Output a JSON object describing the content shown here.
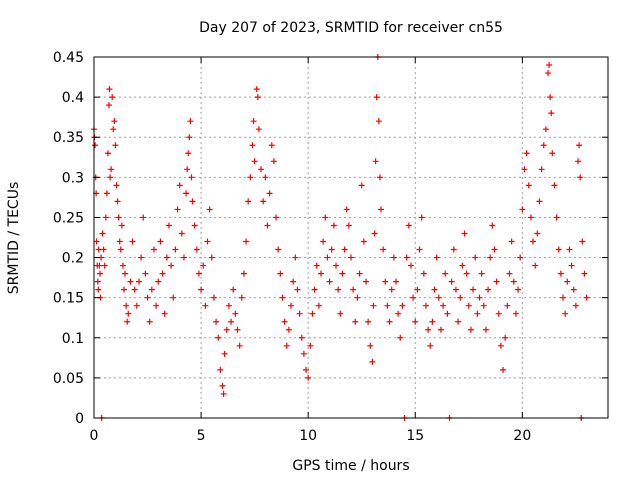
{
  "chart_data": {
    "type": "scatter",
    "title": "Day 207 of 2023, SRMTID for receiver cn55",
    "xlabel": "GPS time / hours",
    "ylabel": "SRMTID / TECUs",
    "xlim": [
      0,
      24
    ],
    "ylim": [
      0,
      0.45
    ],
    "grid": true,
    "marker": "+",
    "colors": {
      "series": "#ff0000",
      "grid": "#a0a0a0",
      "axis": "#000000"
    },
    "xticks": [
      {
        "value": 0,
        "label": "0"
      },
      {
        "value": 5,
        "label": "5"
      },
      {
        "value": 10,
        "label": "10"
      },
      {
        "value": 15,
        "label": "15"
      },
      {
        "value": 20,
        "label": "20"
      }
    ],
    "yticks": [
      {
        "value": 0,
        "label": "0"
      },
      {
        "value": 0.05,
        "label": "0.05"
      },
      {
        "value": 0.1,
        "label": "0.1"
      },
      {
        "value": 0.15,
        "label": "0.15"
      },
      {
        "value": 0.2,
        "label": "0.2"
      },
      {
        "value": 0.25,
        "label": "0.25"
      },
      {
        "value": 0.3,
        "label": "0.3"
      },
      {
        "value": 0.35,
        "label": "0.35"
      },
      {
        "value": 0.4,
        "label": "0.4"
      },
      {
        "value": 0.45,
        "label": "0.45"
      }
    ],
    "series": [
      {
        "name": "SRMTID",
        "points": [
          [
            0.0,
            0.36
          ],
          [
            0.02,
            0.35
          ],
          [
            0.05,
            0.34
          ],
          [
            0.08,
            0.3
          ],
          [
            0.1,
            0.28
          ],
          [
            0.12,
            0.22
          ],
          [
            0.15,
            0.19
          ],
          [
            0.18,
            0.17
          ],
          [
            0.2,
            0.16
          ],
          [
            0.22,
            0.21
          ],
          [
            0.25,
            0.19
          ],
          [
            0.28,
            0.18
          ],
          [
            0.3,
            0.15
          ],
          [
            0.33,
            0.2
          ],
          [
            0.36,
            0.0
          ],
          [
            0.4,
            0.23
          ],
          [
            0.45,
            0.21
          ],
          [
            0.5,
            0.19
          ],
          [
            0.55,
            0.25
          ],
          [
            0.6,
            0.28
          ],
          [
            0.65,
            0.33
          ],
          [
            0.7,
            0.39
          ],
          [
            0.72,
            0.41
          ],
          [
            0.75,
            0.3
          ],
          [
            0.8,
            0.31
          ],
          [
            0.85,
            0.4
          ],
          [
            0.9,
            0.36
          ],
          [
            0.95,
            0.37
          ],
          [
            1.0,
            0.34
          ],
          [
            1.05,
            0.29
          ],
          [
            1.1,
            0.27
          ],
          [
            1.15,
            0.25
          ],
          [
            1.2,
            0.22
          ],
          [
            1.25,
            0.21
          ],
          [
            1.3,
            0.24
          ],
          [
            1.35,
            0.19
          ],
          [
            1.4,
            0.16
          ],
          [
            1.45,
            0.18
          ],
          [
            1.5,
            0.14
          ],
          [
            1.55,
            0.12
          ],
          [
            1.6,
            0.13
          ],
          [
            1.7,
            0.17
          ],
          [
            1.8,
            0.22
          ],
          [
            1.9,
            0.16
          ],
          [
            2.0,
            0.14
          ],
          [
            2.1,
            0.17
          ],
          [
            2.2,
            0.2
          ],
          [
            2.3,
            0.25
          ],
          [
            2.4,
            0.18
          ],
          [
            2.5,
            0.15
          ],
          [
            2.6,
            0.12
          ],
          [
            2.7,
            0.16
          ],
          [
            2.8,
            0.21
          ],
          [
            2.9,
            0.14
          ],
          [
            3.0,
            0.17
          ],
          [
            3.1,
            0.22
          ],
          [
            3.2,
            0.18
          ],
          [
            3.3,
            0.13
          ],
          [
            3.4,
            0.2
          ],
          [
            3.5,
            0.24
          ],
          [
            3.6,
            0.19
          ],
          [
            3.7,
            0.15
          ],
          [
            3.8,
            0.21
          ],
          [
            3.9,
            0.26
          ],
          [
            4.0,
            0.29
          ],
          [
            4.1,
            0.23
          ],
          [
            4.2,
            0.2
          ],
          [
            4.3,
            0.28
          ],
          [
            4.35,
            0.31
          ],
          [
            4.4,
            0.33
          ],
          [
            4.45,
            0.35
          ],
          [
            4.5,
            0.37
          ],
          [
            4.55,
            0.3
          ],
          [
            4.6,
            0.27
          ],
          [
            4.7,
            0.24
          ],
          [
            4.8,
            0.21
          ],
          [
            4.9,
            0.18
          ],
          [
            5.0,
            0.16
          ],
          [
            5.1,
            0.19
          ],
          [
            5.2,
            0.14
          ],
          [
            5.3,
            0.22
          ],
          [
            5.4,
            0.26
          ],
          [
            5.5,
            0.2
          ],
          [
            5.6,
            0.15
          ],
          [
            5.7,
            0.12
          ],
          [
            5.8,
            0.1
          ],
          [
            5.9,
            0.06
          ],
          [
            6.0,
            0.04
          ],
          [
            6.05,
            0.03
          ],
          [
            6.1,
            0.08
          ],
          [
            6.2,
            0.11
          ],
          [
            6.3,
            0.14
          ],
          [
            6.4,
            0.12
          ],
          [
            6.5,
            0.16
          ],
          [
            6.6,
            0.13
          ],
          [
            6.7,
            0.11
          ],
          [
            6.8,
            0.09
          ],
          [
            6.9,
            0.15
          ],
          [
            7.0,
            0.18
          ],
          [
            7.1,
            0.22
          ],
          [
            7.2,
            0.27
          ],
          [
            7.3,
            0.3
          ],
          [
            7.4,
            0.34
          ],
          [
            7.45,
            0.37
          ],
          [
            7.5,
            0.32
          ],
          [
            7.6,
            0.41
          ],
          [
            7.65,
            0.4
          ],
          [
            7.7,
            0.36
          ],
          [
            7.8,
            0.31
          ],
          [
            7.9,
            0.27
          ],
          [
            8.0,
            0.3
          ],
          [
            8.1,
            0.24
          ],
          [
            8.2,
            0.28
          ],
          [
            8.3,
            0.34
          ],
          [
            8.4,
            0.32
          ],
          [
            8.5,
            0.25
          ],
          [
            8.6,
            0.21
          ],
          [
            8.7,
            0.18
          ],
          [
            8.8,
            0.15
          ],
          [
            8.9,
            0.12
          ],
          [
            9.0,
            0.09
          ],
          [
            9.1,
            0.11
          ],
          [
            9.2,
            0.14
          ],
          [
            9.3,
            0.17
          ],
          [
            9.4,
            0.2
          ],
          [
            9.5,
            0.16
          ],
          [
            9.6,
            0.13
          ],
          [
            9.7,
            0.1
          ],
          [
            9.8,
            0.08
          ],
          [
            9.9,
            0.06
          ],
          [
            10.0,
            0.05
          ],
          [
            10.1,
            0.09
          ],
          [
            10.2,
            0.13
          ],
          [
            10.3,
            0.16
          ],
          [
            10.4,
            0.19
          ],
          [
            10.5,
            0.14
          ],
          [
            10.6,
            0.18
          ],
          [
            10.7,
            0.22
          ],
          [
            10.8,
            0.25
          ],
          [
            10.9,
            0.2
          ],
          [
            11.0,
            0.17
          ],
          [
            11.1,
            0.21
          ],
          [
            11.2,
            0.24
          ],
          [
            11.3,
            0.19
          ],
          [
            11.4,
            0.16
          ],
          [
            11.5,
            0.13
          ],
          [
            11.6,
            0.18
          ],
          [
            11.7,
            0.21
          ],
          [
            11.8,
            0.26
          ],
          [
            11.9,
            0.24
          ],
          [
            12.0,
            0.2
          ],
          [
            12.1,
            0.16
          ],
          [
            12.2,
            0.12
          ],
          [
            12.3,
            0.15
          ],
          [
            12.4,
            0.18
          ],
          [
            12.5,
            0.29
          ],
          [
            12.6,
            0.22
          ],
          [
            12.7,
            0.17
          ],
          [
            12.8,
            0.12
          ],
          [
            12.9,
            0.09
          ],
          [
            13.0,
            0.07
          ],
          [
            13.05,
            0.14
          ],
          [
            13.1,
            0.23
          ],
          [
            13.15,
            0.32
          ],
          [
            13.2,
            0.4
          ],
          [
            13.25,
            0.45
          ],
          [
            13.3,
            0.37
          ],
          [
            13.35,
            0.3
          ],
          [
            13.4,
            0.26
          ],
          [
            13.5,
            0.21
          ],
          [
            13.6,
            0.17
          ],
          [
            13.7,
            0.14
          ],
          [
            13.8,
            0.12
          ],
          [
            13.9,
            0.16
          ],
          [
            14.0,
            0.2
          ],
          [
            14.1,
            0.17
          ],
          [
            14.2,
            0.13
          ],
          [
            14.3,
            0.1
          ],
          [
            14.4,
            0.14
          ],
          [
            14.5,
            0.0
          ],
          [
            14.6,
            0.2
          ],
          [
            14.7,
            0.24
          ],
          [
            14.8,
            0.19
          ],
          [
            14.9,
            0.15
          ],
          [
            15.0,
            0.12
          ],
          [
            15.1,
            0.16
          ],
          [
            15.2,
            0.21
          ],
          [
            15.3,
            0.25
          ],
          [
            15.4,
            0.18
          ],
          [
            15.5,
            0.14
          ],
          [
            15.6,
            0.11
          ],
          [
            15.7,
            0.09
          ],
          [
            15.8,
            0.12
          ],
          [
            15.9,
            0.16
          ],
          [
            16.0,
            0.2
          ],
          [
            16.1,
            0.15
          ],
          [
            16.2,
            0.11
          ],
          [
            16.3,
            0.14
          ],
          [
            16.4,
            0.18
          ],
          [
            16.5,
            0.13
          ],
          [
            16.6,
            0.0
          ],
          [
            16.7,
            0.17
          ],
          [
            16.8,
            0.21
          ],
          [
            16.9,
            0.16
          ],
          [
            17.0,
            0.12
          ],
          [
            17.1,
            0.15
          ],
          [
            17.2,
            0.19
          ],
          [
            17.3,
            0.23
          ],
          [
            17.4,
            0.18
          ],
          [
            17.5,
            0.14
          ],
          [
            17.6,
            0.11
          ],
          [
            17.7,
            0.16
          ],
          [
            17.8,
            0.2
          ],
          [
            17.9,
            0.13
          ],
          [
            18.0,
            0.15
          ],
          [
            18.1,
            0.18
          ],
          [
            18.2,
            0.14
          ],
          [
            18.3,
            0.11
          ],
          [
            18.4,
            0.16
          ],
          [
            18.5,
            0.2
          ],
          [
            18.6,
            0.24
          ],
          [
            18.7,
            0.21
          ],
          [
            18.8,
            0.17
          ],
          [
            18.9,
            0.13
          ],
          [
            19.0,
            0.09
          ],
          [
            19.1,
            0.06
          ],
          [
            19.2,
            0.1
          ],
          [
            19.3,
            0.14
          ],
          [
            19.4,
            0.18
          ],
          [
            19.5,
            0.22
          ],
          [
            19.6,
            0.17
          ],
          [
            19.7,
            0.13
          ],
          [
            19.8,
            0.16
          ],
          [
            19.9,
            0.2
          ],
          [
            20.0,
            0.26
          ],
          [
            20.1,
            0.31
          ],
          [
            20.2,
            0.33
          ],
          [
            20.3,
            0.29
          ],
          [
            20.4,
            0.25
          ],
          [
            20.5,
            0.22
          ],
          [
            20.6,
            0.19
          ],
          [
            20.7,
            0.23
          ],
          [
            20.8,
            0.27
          ],
          [
            20.9,
            0.31
          ],
          [
            21.0,
            0.34
          ],
          [
            21.1,
            0.36
          ],
          [
            21.2,
            0.43
          ],
          [
            21.25,
            0.44
          ],
          [
            21.3,
            0.4
          ],
          [
            21.35,
            0.38
          ],
          [
            21.4,
            0.33
          ],
          [
            21.5,
            0.29
          ],
          [
            21.6,
            0.25
          ],
          [
            21.7,
            0.21
          ],
          [
            21.8,
            0.18
          ],
          [
            21.9,
            0.15
          ],
          [
            22.0,
            0.13
          ],
          [
            22.1,
            0.17
          ],
          [
            22.2,
            0.21
          ],
          [
            22.3,
            0.19
          ],
          [
            22.4,
            0.16
          ],
          [
            22.5,
            0.14
          ],
          [
            22.6,
            0.32
          ],
          [
            22.65,
            0.34
          ],
          [
            22.7,
            0.3
          ],
          [
            22.75,
            0.0
          ],
          [
            22.8,
            0.22
          ],
          [
            22.9,
            0.18
          ],
          [
            23.0,
            0.15
          ]
        ]
      }
    ]
  }
}
